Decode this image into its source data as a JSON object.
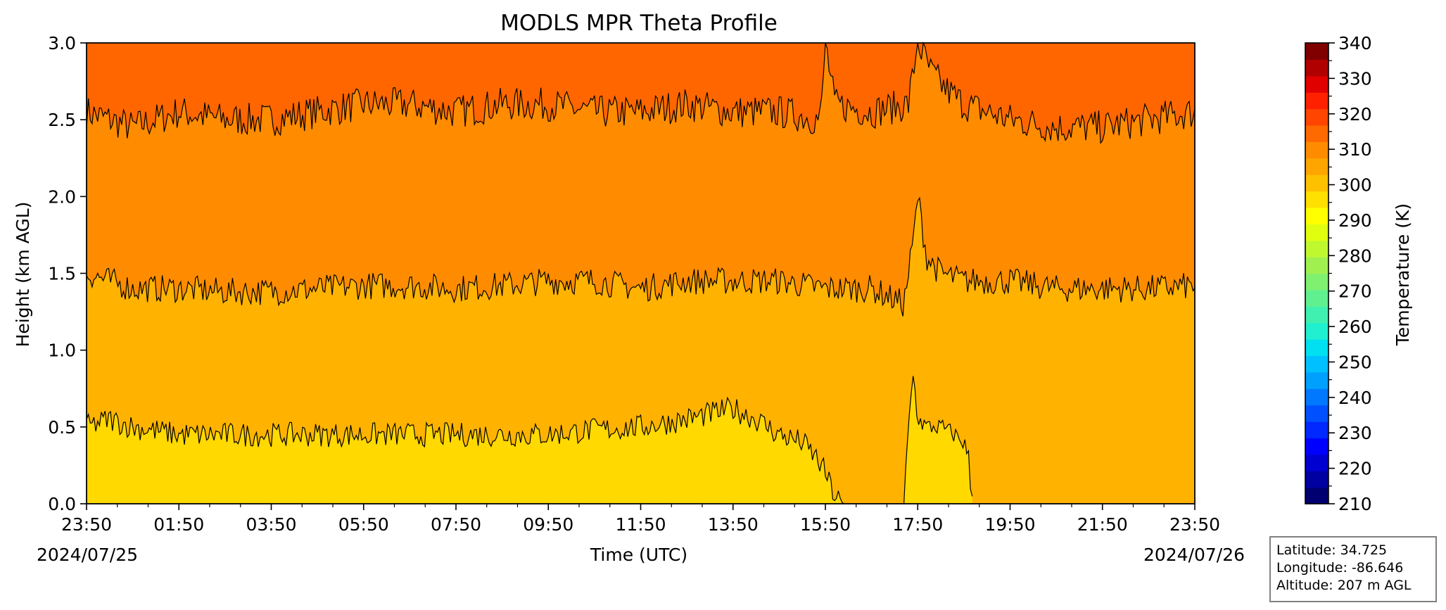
{
  "chart_data": {
    "type": "heatmap",
    "title": "MODLS MPR Theta Profile",
    "xlabel": "Time (UTC)",
    "ylabel": "Height (km AGL)",
    "x_ticks": [
      "23:50",
      "01:50",
      "03:50",
      "05:50",
      "07:50",
      "09:50",
      "11:50",
      "13:50",
      "15:50",
      "17:50",
      "19:50",
      "21:50",
      "23:50"
    ],
    "x_minor_per_major": 2,
    "date_start": "2024/07/25",
    "date_end": "2024/07/26",
    "x_range_hours": [
      0,
      24
    ],
    "ylim": [
      0.0,
      3.0
    ],
    "y_ticks": [
      "0.0",
      "0.5",
      "1.0",
      "1.5",
      "2.0",
      "2.5",
      "3.0"
    ],
    "colorbar": {
      "label": "Temperature (K)",
      "min": 210,
      "max": 340,
      "step": 5,
      "ticks": [
        "210",
        "220",
        "230",
        "240",
        "250",
        "260",
        "270",
        "280",
        "290",
        "300",
        "310",
        "320",
        "330",
        "340"
      ],
      "colors": [
        "#000070",
        "#0000a0",
        "#0000d0",
        "#0000ff",
        "#0028ff",
        "#0050ff",
        "#0078ff",
        "#00a0ff",
        "#00c0ff",
        "#00e0f0",
        "#20f0d0",
        "#40f0b0",
        "#60f090",
        "#80f070",
        "#a0f050",
        "#c0f830",
        "#e0ff10",
        "#ffff00",
        "#ffe000",
        "#ffc000",
        "#ffa500",
        "#ff8c00",
        "#ff6a00",
        "#ff4500",
        "#ff2000",
        "#e00000",
        "#b00000",
        "#800000"
      ]
    },
    "filled_levels": [
      {
        "range_K": [
          300,
          305
        ],
        "color": "#ffd900"
      },
      {
        "range_K": [
          305,
          310
        ],
        "color": "#ffb300"
      },
      {
        "range_K": [
          310,
          315
        ],
        "color": "#ff8c00"
      },
      {
        "range_K": [
          315,
          320
        ],
        "color": "#ff6600"
      }
    ],
    "contours": [
      {
        "level_K": 315,
        "x_hours": [
          0,
          1,
          2,
          3,
          4,
          5,
          6,
          7,
          8,
          9,
          10,
          11,
          12,
          13,
          14,
          15,
          15.9,
          16.0,
          16.2,
          17,
          17.8,
          18.0,
          18.3,
          18.6,
          19,
          20,
          21,
          22,
          23,
          24
        ],
        "height_km": [
          2.55,
          2.45,
          2.55,
          2.5,
          2.5,
          2.55,
          2.6,
          2.6,
          2.55,
          2.6,
          2.6,
          2.55,
          2.55,
          2.6,
          2.55,
          2.55,
          2.5,
          3.0,
          2.6,
          2.55,
          2.6,
          3.0,
          2.8,
          2.7,
          2.6,
          2.5,
          2.45,
          2.45,
          2.5,
          2.55
        ]
      },
      {
        "level_K": 310,
        "x_hours": [
          0,
          1,
          2,
          3,
          4,
          5,
          6,
          7,
          8,
          9,
          10,
          11,
          12,
          13,
          14,
          15,
          16,
          17,
          17.7,
          17.9,
          18.0,
          18.2,
          18.5,
          19,
          20,
          21,
          22,
          23,
          24
        ],
        "height_km": [
          1.5,
          1.4,
          1.4,
          1.38,
          1.38,
          1.4,
          1.42,
          1.42,
          1.4,
          1.42,
          1.45,
          1.45,
          1.4,
          1.45,
          1.45,
          1.45,
          1.4,
          1.4,
          1.3,
          1.7,
          2.0,
          1.6,
          1.5,
          1.45,
          1.45,
          1.4,
          1.4,
          1.4,
          1.42
        ]
      },
      {
        "level_K": 305,
        "x_hours": [
          0,
          0.5,
          1,
          2,
          3,
          4,
          5,
          6,
          7,
          8,
          9,
          10,
          11,
          12,
          13,
          14,
          14.5,
          15,
          15.5,
          15.8,
          16.0,
          16.2,
          16.4
        ],
        "height_km": [
          0.5,
          0.55,
          0.5,
          0.45,
          0.45,
          0.45,
          0.45,
          0.45,
          0.45,
          0.45,
          0.45,
          0.45,
          0.48,
          0.5,
          0.55,
          0.62,
          0.55,
          0.45,
          0.4,
          0.3,
          0.2,
          0.05,
          0.0
        ]
      },
      {
        "level_K": 305,
        "x_hours": [
          17.7,
          17.8,
          17.9,
          18.0,
          18.2,
          18.5,
          18.8,
          19.0,
          19.1,
          19.15,
          19.2
        ],
        "height_km": [
          0.0,
          0.5,
          0.85,
          0.55,
          0.5,
          0.5,
          0.45,
          0.4,
          0.3,
          0.1,
          0.0
        ]
      }
    ]
  },
  "info_box": {
    "latitude": "Latitude: 34.725",
    "longitude": "Longitude: -86.646",
    "altitude": "Altitude: 207 m AGL"
  }
}
